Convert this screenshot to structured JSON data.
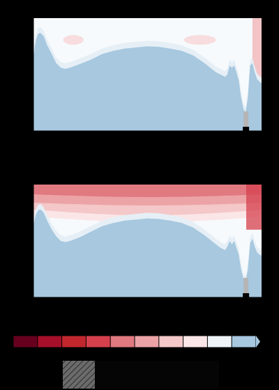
{
  "chart_data": [
    {
      "type": "area",
      "panel": "top",
      "title": "",
      "xlabel": "",
      "ylabel": "",
      "grid": false,
      "x": [
        0,
        0.01,
        0.02,
        0.03,
        0.045,
        0.06,
        0.08,
        0.1,
        0.12,
        0.14,
        0.16,
        0.2,
        0.25,
        0.3,
        0.35,
        0.4,
        0.45,
        0.5,
        0.55,
        0.6,
        0.65,
        0.7,
        0.75,
        0.8,
        0.82,
        0.84,
        0.85,
        0.86,
        0.87,
        0.88,
        0.89,
        0.9,
        0.91,
        0.92,
        0.93,
        0.94,
        0.95,
        0.96,
        0.97,
        0.98,
        0.99,
        1.0
      ],
      "y": [
        0.65,
        0.8,
        0.86,
        0.87,
        0.84,
        0.76,
        0.68,
        0.6,
        0.56,
        0.55,
        0.56,
        0.59,
        0.63,
        0.68,
        0.71,
        0.73,
        0.74,
        0.75,
        0.745,
        0.73,
        0.71,
        0.67,
        0.6,
        0.52,
        0.5,
        0.48,
        0.5,
        0.58,
        0.56,
        0.58,
        0.52,
        0.45,
        0.3,
        0.2,
        0.16,
        0.3,
        0.58,
        0.6,
        0.52,
        0.46,
        0.44,
        0.42
      ],
      "warm_bands": [
        {
          "x0": 0.13,
          "x1": 0.22,
          "level": 0.93,
          "intensity": "light"
        },
        {
          "x0": 0.66,
          "x1": 0.8,
          "level": 0.93,
          "intensity": "light"
        },
        {
          "x0": 0.96,
          "x1": 1.0,
          "level": 1.0,
          "intensity": "medium"
        }
      ]
    },
    {
      "type": "area",
      "panel": "bottom",
      "title": "",
      "xlabel": "",
      "ylabel": "",
      "grid": false,
      "x": [
        0,
        0.01,
        0.02,
        0.03,
        0.045,
        0.06,
        0.08,
        0.1,
        0.12,
        0.14,
        0.16,
        0.2,
        0.25,
        0.3,
        0.35,
        0.4,
        0.45,
        0.5,
        0.55,
        0.6,
        0.65,
        0.7,
        0.75,
        0.8,
        0.82,
        0.84,
        0.85,
        0.86,
        0.87,
        0.88,
        0.89,
        0.9,
        0.91,
        0.92,
        0.93,
        0.94,
        0.95,
        0.96,
        0.97,
        0.98,
        0.99,
        1.0
      ],
      "y": [
        0.64,
        0.73,
        0.77,
        0.78,
        0.75,
        0.68,
        0.6,
        0.54,
        0.5,
        0.49,
        0.5,
        0.53,
        0.58,
        0.63,
        0.66,
        0.68,
        0.69,
        0.7,
        0.695,
        0.68,
        0.66,
        0.62,
        0.55,
        0.47,
        0.44,
        0.42,
        0.45,
        0.5,
        0.47,
        0.5,
        0.44,
        0.38,
        0.25,
        0.17,
        0.14,
        0.25,
        0.48,
        0.52,
        0.45,
        0.4,
        0.38,
        0.37
      ],
      "warm_bands": [
        {
          "x0": 0.0,
          "x1": 1.0,
          "level": 1.0,
          "intensity": "strong-top"
        }
      ]
    }
  ],
  "colorbar": {
    "colors": [
      "#67001f",
      "#a50f2a",
      "#c1272d",
      "#d6404d",
      "#e07a80",
      "#eca3a6",
      "#f4c7c8",
      "#fbe6e7",
      "#eef3f8",
      "#a7c8df"
    ],
    "hatch_swatch_color": "#6b6b6b"
  },
  "palette": {
    "background": "#000000",
    "plot_bg": "#f7fafc",
    "ocean_fill": "#a7c8df",
    "grey_marker": "#b5b5b5",
    "black_marker": "#000000"
  }
}
